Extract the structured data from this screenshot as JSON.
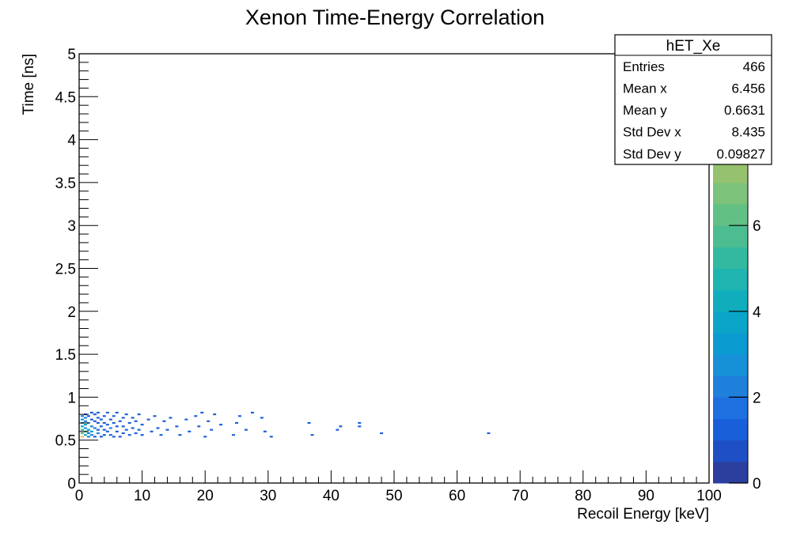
{
  "chart_data": {
    "type": "heatmap",
    "title": "Xenon Time-Energy Correlation",
    "xlabel": "Recoil Energy [keV]",
    "ylabel": "Time [ns]",
    "xlim": [
      0,
      100
    ],
    "ylim": [
      0,
      5
    ],
    "x_ticks": [
      "0",
      "10",
      "20",
      "30",
      "40",
      "50",
      "60",
      "70",
      "80",
      "90",
      "100"
    ],
    "y_ticks": [
      "0",
      "0.5",
      "1",
      "1.5",
      "2",
      "2.5",
      "3",
      "3.5",
      "4",
      "4.5",
      "5"
    ],
    "bin_width_x": 0.5,
    "bin_height_y": 0.02,
    "colorbar": {
      "zlim": [
        0,
        10
      ],
      "ticks": [
        "0",
        "2",
        "4",
        "6",
        "8"
      ],
      "levels": 20,
      "colors": [
        "#2b3f9e",
        "#1e4fc4",
        "#1a5fda",
        "#1e6fe0",
        "#1f80dc",
        "#1690d6",
        "#0a9bd0",
        "#0aa5c8",
        "#10adbd",
        "#1fb4b0",
        "#33b9a0",
        "#4bbd91",
        "#62c085",
        "#7cc27a",
        "#96c26f",
        "#b0c066",
        "#c6bd5e",
        "#d8bb58",
        "#ecc34b",
        "#fad032"
      ]
    },
    "bins": [
      [
        0.5,
        0.54,
        9
      ],
      [
        0.5,
        0.58,
        6
      ],
      [
        0.5,
        0.62,
        5
      ],
      [
        0.5,
        0.66,
        4
      ],
      [
        0.5,
        0.7,
        3
      ],
      [
        0.5,
        0.74,
        3
      ],
      [
        0.5,
        0.78,
        2
      ],
      [
        1.0,
        0.56,
        4
      ],
      [
        1.0,
        0.6,
        5
      ],
      [
        1.0,
        0.64,
        3
      ],
      [
        1.0,
        0.68,
        3
      ],
      [
        1.0,
        0.72,
        2
      ],
      [
        1.0,
        0.76,
        2
      ],
      [
        1.0,
        0.8,
        1
      ],
      [
        1.5,
        0.54,
        2
      ],
      [
        1.5,
        0.62,
        3
      ],
      [
        1.5,
        0.7,
        2
      ],
      [
        1.5,
        0.78,
        1
      ],
      [
        1.5,
        0.58,
        2
      ],
      [
        2.0,
        0.56,
        2
      ],
      [
        2.0,
        0.6,
        3
      ],
      [
        2.0,
        0.66,
        2
      ],
      [
        2.0,
        0.74,
        1
      ],
      [
        2.0,
        0.82,
        1
      ],
      [
        2.5,
        0.54,
        1
      ],
      [
        2.5,
        0.64,
        2
      ],
      [
        2.5,
        0.72,
        1
      ],
      [
        2.5,
        0.8,
        1
      ],
      [
        3.0,
        0.58,
        2
      ],
      [
        3.0,
        0.62,
        1
      ],
      [
        3.0,
        0.7,
        1
      ],
      [
        3.0,
        0.76,
        1
      ],
      [
        3.0,
        0.82,
        1
      ],
      [
        3.5,
        0.54,
        1
      ],
      [
        3.5,
        0.66,
        1
      ],
      [
        3.5,
        0.74,
        1
      ],
      [
        4.0,
        0.56,
        1
      ],
      [
        4.0,
        0.62,
        1
      ],
      [
        4.0,
        0.7,
        1
      ],
      [
        4.0,
        0.78,
        1
      ],
      [
        4.5,
        0.6,
        1
      ],
      [
        4.5,
        0.68,
        1
      ],
      [
        4.5,
        0.82,
        1
      ],
      [
        5.0,
        0.56,
        1
      ],
      [
        5.0,
        0.64,
        2
      ],
      [
        5.0,
        0.74,
        1
      ],
      [
        5.5,
        0.54,
        1
      ],
      [
        5.5,
        0.7,
        1
      ],
      [
        5.5,
        0.78,
        1
      ],
      [
        6.0,
        0.6,
        1
      ],
      [
        6.0,
        0.66,
        1
      ],
      [
        6.0,
        0.82,
        1
      ],
      [
        6.5,
        0.54,
        1
      ],
      [
        6.5,
        0.72,
        1
      ],
      [
        7.0,
        0.58,
        1
      ],
      [
        7.0,
        0.66,
        1
      ],
      [
        7.0,
        0.76,
        1
      ],
      [
        7.5,
        0.62,
        1
      ],
      [
        7.5,
        0.8,
        1
      ],
      [
        8.0,
        0.56,
        1
      ],
      [
        8.0,
        0.7,
        1
      ],
      [
        8.5,
        0.64,
        1
      ],
      [
        8.5,
        0.76,
        1
      ],
      [
        9.0,
        0.58,
        1
      ],
      [
        9.0,
        0.72,
        1
      ],
      [
        9.5,
        0.62,
        1
      ],
      [
        9.5,
        0.8,
        1
      ],
      [
        10.0,
        0.56,
        1
      ],
      [
        10.0,
        0.68,
        1
      ],
      [
        11.0,
        0.74,
        1
      ],
      [
        11.5,
        0.6,
        1
      ],
      [
        12.0,
        0.78,
        1
      ],
      [
        12.5,
        0.64,
        1
      ],
      [
        13.0,
        0.56,
        1
      ],
      [
        13.5,
        0.72,
        1
      ],
      [
        14.0,
        0.62,
        1
      ],
      [
        14.5,
        0.76,
        1
      ],
      [
        15.5,
        0.66,
        1
      ],
      [
        16.0,
        0.56,
        1
      ],
      [
        17.0,
        0.74,
        1
      ],
      [
        17.5,
        0.6,
        1
      ],
      [
        18.5,
        0.78,
        1
      ],
      [
        19.0,
        0.66,
        1
      ],
      [
        19.5,
        0.82,
        1
      ],
      [
        20.0,
        0.54,
        1
      ],
      [
        20.5,
        0.72,
        1
      ],
      [
        21.0,
        0.62,
        1
      ],
      [
        21.5,
        0.8,
        1
      ],
      [
        22.5,
        0.68,
        1
      ],
      [
        24.5,
        0.56,
        1
      ],
      [
        25.0,
        0.7,
        1
      ],
      [
        25.5,
        0.78,
        1
      ],
      [
        26.5,
        0.62,
        1
      ],
      [
        27.5,
        0.82,
        1
      ],
      [
        29.0,
        0.76,
        1
      ],
      [
        29.5,
        0.6,
        1
      ],
      [
        30.5,
        0.54,
        1
      ],
      [
        36.5,
        0.7,
        1
      ],
      [
        37.0,
        0.56,
        1
      ],
      [
        41.0,
        0.62,
        1
      ],
      [
        41.5,
        0.66,
        1
      ],
      [
        44.5,
        0.7,
        1
      ],
      [
        44.5,
        0.66,
        1
      ],
      [
        48.0,
        0.58,
        1
      ],
      [
        65.0,
        0.58,
        1
      ]
    ],
    "stats_box": {
      "title": "hET_Xe",
      "rows": [
        {
          "label": "Entries",
          "value": "466"
        },
        {
          "label": "Mean x",
          "value": "6.456"
        },
        {
          "label": "Mean y",
          "value": "0.6631"
        },
        {
          "label": "Std Dev x",
          "value": "8.435"
        },
        {
          "label": "Std Dev y",
          "value": "0.09827"
        }
      ]
    }
  }
}
